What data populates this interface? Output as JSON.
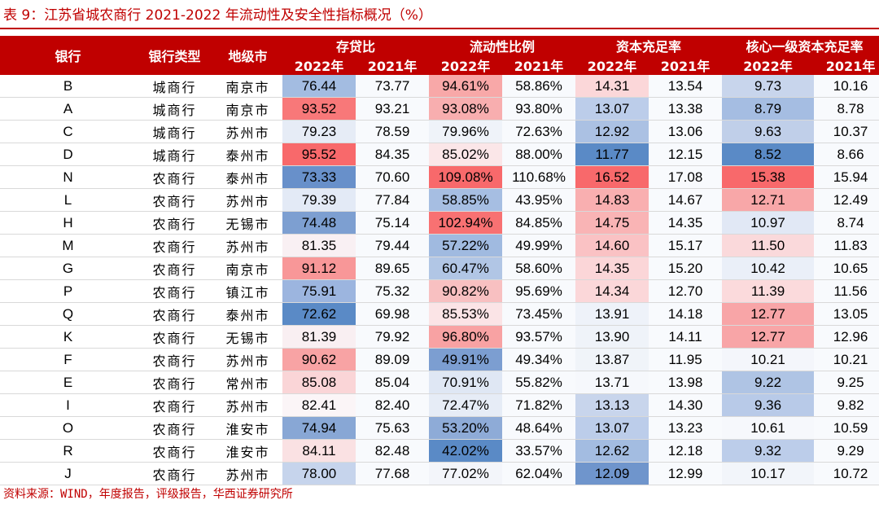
{
  "title": "表 9：江苏省城农商行 2021-2022 年流动性及安全性指标概况（%）",
  "header": {
    "bank": "银行",
    "type": "银行类型",
    "city": "地级市",
    "groups": [
      "存贷比",
      "流动性比例",
      "资本充足率",
      "核心一级资本充足率"
    ],
    "years": [
      "2022年",
      "2021年",
      "2022年",
      "2021年",
      "2022年",
      "2021年",
      "2022年",
      "2021年"
    ]
  },
  "rows": [
    {
      "bank": "B",
      "type": "城商行",
      "city": "南京市",
      "values": [
        "76.44",
        "73.77",
        "94.61%",
        "58.86%",
        "14.31",
        "13.54",
        "9.73",
        "10.16"
      ]
    },
    {
      "bank": "A",
      "type": "城商行",
      "city": "南京市",
      "values": [
        "93.52",
        "93.21",
        "93.08%",
        "93.80%",
        "13.07",
        "13.38",
        "8.79",
        "8.78"
      ]
    },
    {
      "bank": "C",
      "type": "城商行",
      "city": "苏州市",
      "values": [
        "79.23",
        "78.59",
        "79.96%",
        "72.63%",
        "12.92",
        "13.06",
        "9.63",
        "10.37"
      ]
    },
    {
      "bank": "D",
      "type": "城商行",
      "city": "泰州市",
      "values": [
        "95.52",
        "84.35",
        "85.02%",
        "88.00%",
        "11.77",
        "12.15",
        "8.52",
        "8.66"
      ]
    },
    {
      "bank": "N",
      "type": "农商行",
      "city": "泰州市",
      "values": [
        "73.33",
        "70.60",
        "109.08%",
        "110.68%",
        "16.52",
        "17.08",
        "15.38",
        "15.94"
      ]
    },
    {
      "bank": "L",
      "type": "农商行",
      "city": "苏州市",
      "values": [
        "79.39",
        "77.84",
        "58.85%",
        "43.95%",
        "14.83",
        "14.67",
        "12.71",
        "12.49"
      ]
    },
    {
      "bank": "H",
      "type": "农商行",
      "city": "无锡市",
      "values": [
        "74.48",
        "75.14",
        "102.94%",
        "84.85%",
        "14.75",
        "14.35",
        "10.97",
        "8.74"
      ]
    },
    {
      "bank": "M",
      "type": "农商行",
      "city": "苏州市",
      "values": [
        "81.35",
        "79.44",
        "57.22%",
        "49.99%",
        "14.60",
        "15.17",
        "11.50",
        "11.83"
      ]
    },
    {
      "bank": "G",
      "type": "农商行",
      "city": "南京市",
      "values": [
        "91.12",
        "89.65",
        "60.47%",
        "58.60%",
        "14.35",
        "15.20",
        "10.42",
        "10.65"
      ]
    },
    {
      "bank": "P",
      "type": "农商行",
      "city": "镇江市",
      "values": [
        "75.91",
        "75.32",
        "90.82%",
        "95.69%",
        "14.34",
        "12.70",
        "11.39",
        "11.56"
      ]
    },
    {
      "bank": "Q",
      "type": "农商行",
      "city": "泰州市",
      "values": [
        "72.62",
        "69.98",
        "85.53%",
        "73.45%",
        "13.91",
        "14.18",
        "12.77",
        "13.05"
      ]
    },
    {
      "bank": "K",
      "type": "农商行",
      "city": "无锡市",
      "values": [
        "81.39",
        "79.92",
        "96.80%",
        "93.57%",
        "13.90",
        "14.11",
        "12.77",
        "12.96"
      ]
    },
    {
      "bank": "F",
      "type": "农商行",
      "city": "苏州市",
      "values": [
        "90.62",
        "89.09",
        "49.91%",
        "49.34%",
        "13.87",
        "11.95",
        "10.21",
        "10.21"
      ]
    },
    {
      "bank": "E",
      "type": "农商行",
      "city": "常州市",
      "values": [
        "85.08",
        "85.04",
        "70.91%",
        "55.82%",
        "13.71",
        "13.98",
        "9.22",
        "9.25"
      ]
    },
    {
      "bank": "I",
      "type": "农商行",
      "city": "苏州市",
      "values": [
        "82.41",
        "82.40",
        "72.47%",
        "71.82%",
        "13.13",
        "14.30",
        "9.36",
        "9.82"
      ]
    },
    {
      "bank": "O",
      "type": "农商行",
      "city": "淮安市",
      "values": [
        "74.94",
        "75.63",
        "53.20%",
        "48.64%",
        "13.07",
        "13.23",
        "10.61",
        "10.59"
      ]
    },
    {
      "bank": "R",
      "type": "农商行",
      "city": "淮安市",
      "values": [
        "84.11",
        "82.48",
        "42.02%",
        "33.57%",
        "12.62",
        "12.18",
        "9.32",
        "9.29"
      ]
    },
    {
      "bank": "J",
      "type": "农商行",
      "city": "苏州市",
      "values": [
        "78.00",
        "77.68",
        "77.02%",
        "62.04%",
        "12.09",
        "12.99",
        "10.17",
        "10.72"
      ]
    }
  ],
  "heatmap_colors": [
    [
      "#a3bce1",
      "#f8fafd",
      "#f8a8a8",
      "#f8fafd",
      "#fbd7d9",
      "#f8fafd",
      "#c8d5ec",
      "#f8fafd"
    ],
    [
      "#f87879",
      "#f8fafd",
      "#f8aeaf",
      "#f8fafd",
      "#bccdea",
      "#f8fafd",
      "#a5bde2",
      "#f8fafd"
    ],
    [
      "#e6ecf6",
      "#f8fafd",
      "#eff3f9",
      "#f8fafd",
      "#abc1e3",
      "#f8fafd",
      "#c0cfe9",
      "#f8fafd"
    ],
    [
      "#f8696b",
      "#f8fafd",
      "#fbe6e8",
      "#f8fafd",
      "#5a8ac6",
      "#f8fafd",
      "#5a8ac6",
      "#f8fafd"
    ],
    [
      "#6890ca",
      "#f8fafd",
      "#f8696b",
      "#f8fafd",
      "#f8696b",
      "#f8fafd",
      "#f8696b",
      "#f8fafd"
    ],
    [
      "#e3eaf6",
      "#f8fafd",
      "#a6bee2",
      "#f8fafd",
      "#f9afb0",
      "#f8fafd",
      "#f8a7a8",
      "#f8fafd"
    ],
    [
      "#7d9fd1",
      "#f8fafd",
      "#f87172",
      "#f8fafd",
      "#f9b4b5",
      "#f8fafd",
      "#e1e8f5",
      "#f8fafd"
    ],
    [
      "#f9f0f3",
      "#f8fafd",
      "#a0bae0",
      "#f8fafd",
      "#fac2c4",
      "#f8fafd",
      "#fad9db",
      "#f8fafd"
    ],
    [
      "#f89798",
      "#f8fafd",
      "#b1c6e5",
      "#f8fafd",
      "#fbd6d8",
      "#f8fafd",
      "#eaeff8",
      "#f8fafd"
    ],
    [
      "#9cb5df",
      "#f8fafd",
      "#f8c0c1",
      "#f8fafd",
      "#fbd7d9",
      "#f8fafd",
      "#fbdadc",
      "#f8fafd"
    ],
    [
      "#5a8ac6",
      "#f8fafd",
      "#fbe4e6",
      "#f8fafd",
      "#eef2f9",
      "#f8fafd",
      "#f8a5a7",
      "#f8fafd"
    ],
    [
      "#f9efF2",
      "#f8fafd",
      "#f8a2a3",
      "#f8fafd",
      "#eff3f9",
      "#f8fafd",
      "#f8a5a7",
      "#f8fafd"
    ],
    [
      "#f8a3a4",
      "#f8fafd",
      "#7c9ed1",
      "#f8fafd",
      "#f0f4f9",
      "#f8fafd",
      "#f4f6fb",
      "#f8fafd"
    ],
    [
      "#fad5d7",
      "#f8fafd",
      "#dfe7f4",
      "#f8fafd",
      "#f6f8fc",
      "#f8fafd",
      "#afc4e4",
      "#f8fafd"
    ],
    [
      "#fbf5f7",
      "#f8fafd",
      "#e6ecf6",
      "#f8fafd",
      "#c8d5ec",
      "#f8fafd",
      "#b8cae8",
      "#f8fafd"
    ],
    [
      "#88a7d5",
      "#f8fafd",
      "#8eabd7",
      "#f8fafd",
      "#bccdea",
      "#f8fafd",
      "#f6f8fc",
      "#f8fafd"
    ],
    [
      "#fae1e3",
      "#f8fafd",
      "#5a8ac6",
      "#f8fafd",
      "#a3bce1",
      "#f8fafd",
      "#bccdea",
      "#f8fafd"
    ],
    [
      "#c6d4ec",
      "#f8fafd",
      "#f3f5fa",
      "#f8fafd",
      "#6f95cc",
      "#f8fafd",
      "#f2f5fa",
      "#f8fafd"
    ]
  ],
  "source": "资料来源：WIND，年度报告，评级报告，华西证券研究所"
}
